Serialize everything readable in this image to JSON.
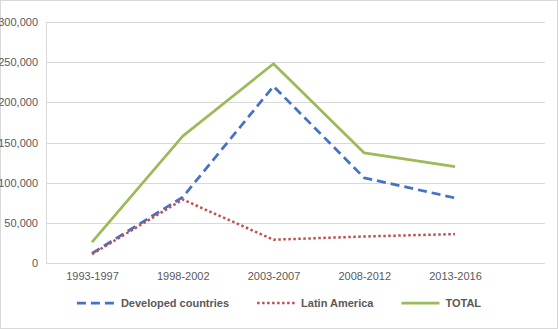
{
  "chart_data": {
    "type": "line",
    "categories": [
      "1993-1997",
      "1998-2002",
      "2003-2007",
      "2008-2012",
      "2013-2016"
    ],
    "series": [
      {
        "name": "Developed countries",
        "color": "#4472c4",
        "line_style": "dashed",
        "values": [
          12000,
          82000,
          220000,
          106000,
          81000
        ]
      },
      {
        "name": "Latin America",
        "color": "#c0504d",
        "line_style": "dotted",
        "values": [
          11000,
          79000,
          29000,
          33000,
          36000
        ]
      },
      {
        "name": "TOTAL",
        "color": "#9bbb59",
        "line_style": "solid",
        "values": [
          26000,
          158000,
          248000,
          137000,
          120000
        ]
      }
    ],
    "ylim": [
      0,
      300000
    ],
    "yticks": [
      0,
      {
        "value": 50000,
        "label": "50,000"
      },
      {
        "value": 100000,
        "label": "100,000"
      },
      {
        "value": 150000,
        "label": "150,000"
      },
      {
        "value": 200000,
        "label": "200,000"
      },
      {
        "value": 250000,
        "label": "250,000"
      },
      {
        "value": 300000,
        "label": "300,000"
      }
    ],
    "grid": true,
    "legend": "bottom"
  }
}
